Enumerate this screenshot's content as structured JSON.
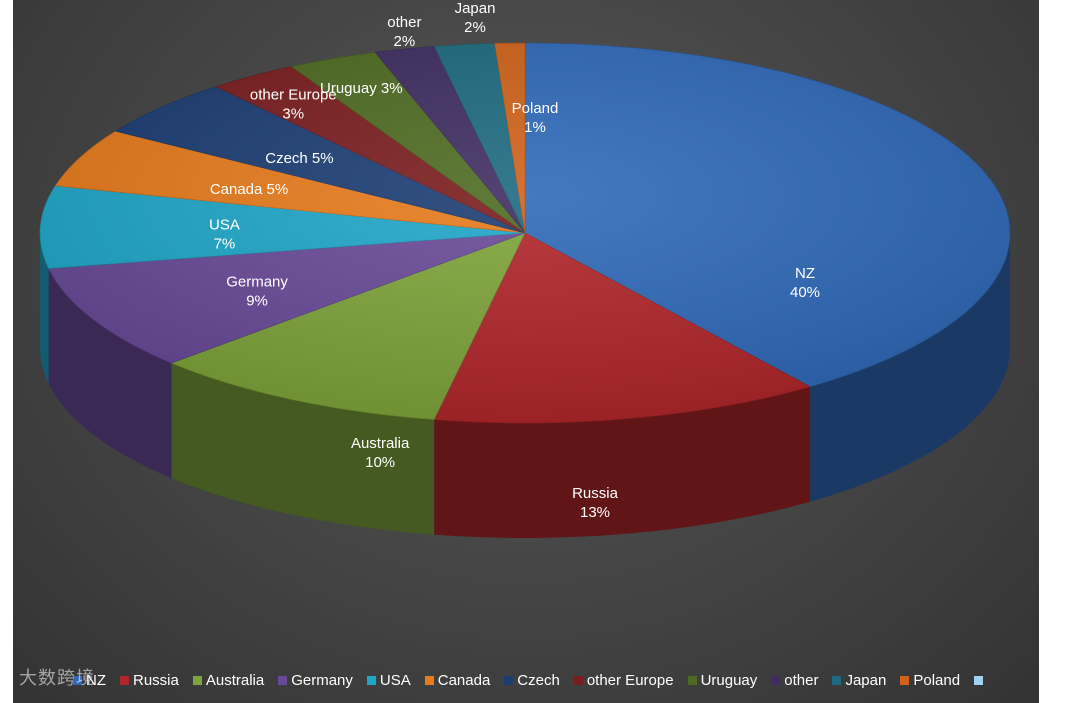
{
  "chart_data": {
    "type": "pie",
    "style": "3d",
    "slices": [
      {
        "name": "NZ",
        "value": 40,
        "label": "40%",
        "color": "#2f69b8"
      },
      {
        "name": "Russia",
        "value": 13,
        "label": "13%",
        "color": "#b0262a"
      },
      {
        "name": "Australia",
        "value": 10,
        "label": "10%",
        "color": "#7ea43a"
      },
      {
        "name": "Germany",
        "value": 9,
        "label": "9%",
        "color": "#6a4a98"
      },
      {
        "name": "USA",
        "value": 7,
        "label": "7%",
        "color": "#1fa7c9"
      },
      {
        "name": "Canada",
        "value": 5,
        "label": "5%",
        "color": "#e87b1c"
      },
      {
        "name": "Czech",
        "value": 5,
        "label": "5%",
        "color": "#1c3d73"
      },
      {
        "name": "other Europe",
        "value": 3,
        "label": "3%",
        "color": "#7a1d1f"
      },
      {
        "name": "Uruguay",
        "value": 3,
        "label": "3%",
        "color": "#4e6b22"
      },
      {
        "name": "other",
        "value": 2,
        "label": "2%",
        "color": "#3f2d63"
      },
      {
        "name": "Japan",
        "value": 2,
        "label": "2%",
        "color": "#1d6a80"
      },
      {
        "name": "Poland",
        "value": 1,
        "label": "1%",
        "color": "#d0621a"
      }
    ],
    "legend": {
      "position": "bottom",
      "entries": [
        "NZ",
        "Russia",
        "Australia",
        "Germany",
        "USA",
        "Canada",
        "Czech",
        "other Europe",
        "Uruguay",
        "other",
        "Japan",
        "Poland",
        ""
      ]
    }
  },
  "watermark": "大数跨境"
}
